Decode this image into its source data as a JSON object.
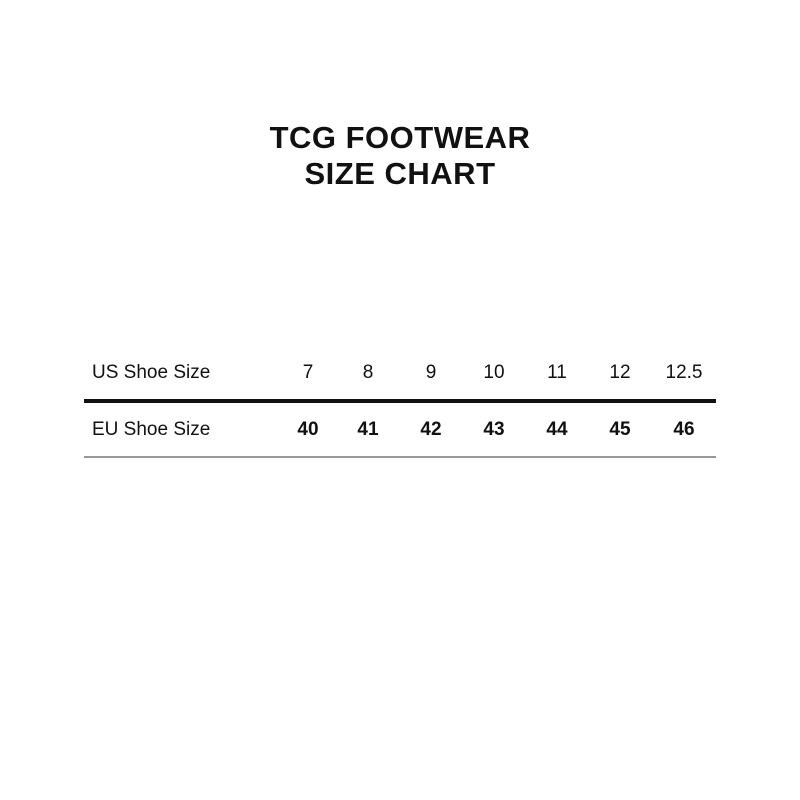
{
  "title": {
    "line1": "TCG FOOTWEAR",
    "line2": "SIZE CHART"
  },
  "table": {
    "us": {
      "label": "US Shoe Size",
      "values": [
        "7",
        "8",
        "9",
        "10",
        "11",
        "12",
        "12.5"
      ]
    },
    "eu": {
      "label": "EU Shoe Size",
      "values": [
        "40",
        "41",
        "42",
        "43",
        "44",
        "45",
        "46"
      ]
    }
  }
}
